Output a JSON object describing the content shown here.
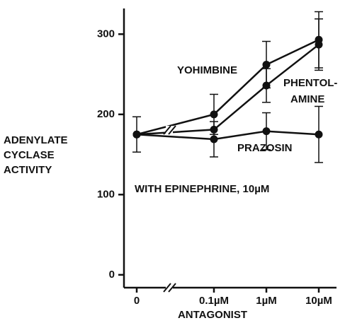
{
  "chart_data": {
    "type": "line",
    "ylabel": [
      "ADENYLATE",
      "CYCLASE",
      "ACTIVITY"
    ],
    "xlabel": "ANTAGONIST",
    "annotation": "WITH EPINEPHRINE, 10µM",
    "categories": [
      "0",
      "0.1µM",
      "1µM",
      "10µM"
    ],
    "axis_break": true,
    "series": [
      {
        "name": "YOHIMBINE",
        "color": "#111111",
        "values": [
          175,
          200,
          262,
          293
        ],
        "errors": [
          22,
          25,
          29,
          35
        ]
      },
      {
        "name": [
          "PHENTOL-",
          "AMINE"
        ],
        "color": "#111111",
        "values": [
          175,
          181,
          236,
          287
        ],
        "errors": [
          null,
          null,
          21,
          32
        ]
      },
      {
        "name": "PRAZOSIN",
        "color": "#111111",
        "values": [
          175,
          169,
          179,
          175
        ],
        "errors": [
          null,
          22,
          23,
          35
        ]
      }
    ],
    "ylim": [
      -16,
      332
    ],
    "yticks": [
      0,
      100,
      200,
      300
    ]
  }
}
